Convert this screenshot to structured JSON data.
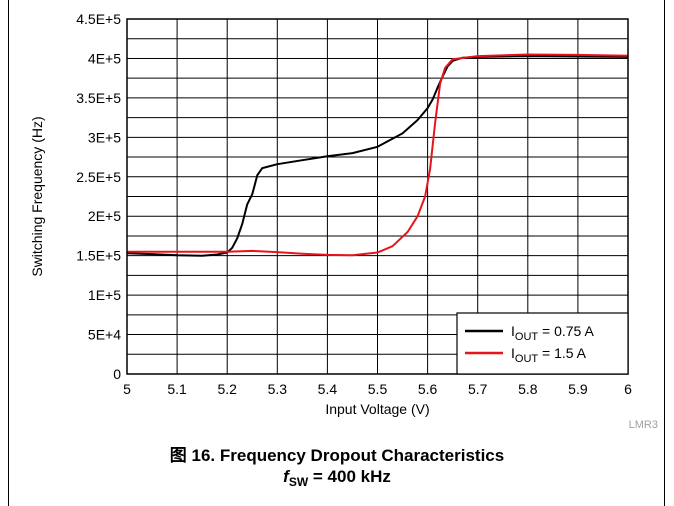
{
  "chart_data": {
    "type": "line",
    "xlabel": "Input Voltage (V)",
    "ylabel": "Switching Frequency (Hz)",
    "xlim": [
      5,
      6
    ],
    "ylim": [
      0,
      450000
    ],
    "x_ticks": [
      "5",
      "5.1",
      "5.2",
      "5.3",
      "5.4",
      "5.5",
      "5.6",
      "5.7",
      "5.8",
      "5.9",
      "6"
    ],
    "y_ticks": [
      "0",
      "5E+4",
      "1E+5",
      "1.5E+5",
      "2E+5",
      "2.5E+5",
      "3E+5",
      "3.5E+5",
      "4E+5",
      "4.5E+5"
    ],
    "grid": true,
    "legend_position": "bottom-right",
    "watermark": "LMR3",
    "series": [
      {
        "name": "I_OUT = 0.75 A",
        "label_main": "I",
        "label_sub": "OUT",
        "label_rest": " = 0.75 A",
        "color": "#000000",
        "points": [
          [
            5.0,
            153000
          ],
          [
            5.05,
            152000
          ],
          [
            5.1,
            150500
          ],
          [
            5.15,
            150000
          ],
          [
            5.18,
            151500
          ],
          [
            5.2,
            154000
          ],
          [
            5.21,
            160000
          ],
          [
            5.22,
            172000
          ],
          [
            5.23,
            190000
          ],
          [
            5.24,
            215000
          ],
          [
            5.25,
            228000
          ],
          [
            5.26,
            252000
          ],
          [
            5.27,
            261000
          ],
          [
            5.3,
            266000
          ],
          [
            5.35,
            271000
          ],
          [
            5.4,
            276000
          ],
          [
            5.45,
            280000
          ],
          [
            5.5,
            288000
          ],
          [
            5.55,
            305000
          ],
          [
            5.58,
            322000
          ],
          [
            5.6,
            337000
          ],
          [
            5.61,
            348000
          ],
          [
            5.62,
            363000
          ],
          [
            5.63,
            377000
          ],
          [
            5.64,
            390000
          ],
          [
            5.65,
            397000
          ],
          [
            5.67,
            401000
          ],
          [
            5.7,
            402000
          ],
          [
            5.8,
            403000
          ],
          [
            5.9,
            402500
          ],
          [
            6.0,
            402000
          ]
        ]
      },
      {
        "name": "I_OUT = 1.5 A",
        "label_main": "I",
        "label_sub": "OUT",
        "label_rest": " = 1.5 A",
        "color": "#e8141b",
        "points": [
          [
            5.0,
            155000
          ],
          [
            5.1,
            155000
          ],
          [
            5.2,
            155000
          ],
          [
            5.25,
            156000
          ],
          [
            5.3,
            154500
          ],
          [
            5.35,
            152500
          ],
          [
            5.4,
            151000
          ],
          [
            5.45,
            150500
          ],
          [
            5.5,
            154000
          ],
          [
            5.53,
            162000
          ],
          [
            5.56,
            180000
          ],
          [
            5.58,
            200000
          ],
          [
            5.595,
            225000
          ],
          [
            5.605,
            260000
          ],
          [
            5.615,
            318000
          ],
          [
            5.625,
            368000
          ],
          [
            5.635,
            388000
          ],
          [
            5.65,
            399000
          ],
          [
            5.7,
            403000
          ],
          [
            5.8,
            405000
          ],
          [
            5.9,
            404500
          ],
          [
            6.0,
            403500
          ]
        ]
      }
    ]
  },
  "caption": {
    "line1": "图 16. Frequency Dropout Characteristics",
    "line2_main": "f",
    "line2_sub": "SW",
    "line2_rest": " = 400 kHz"
  }
}
